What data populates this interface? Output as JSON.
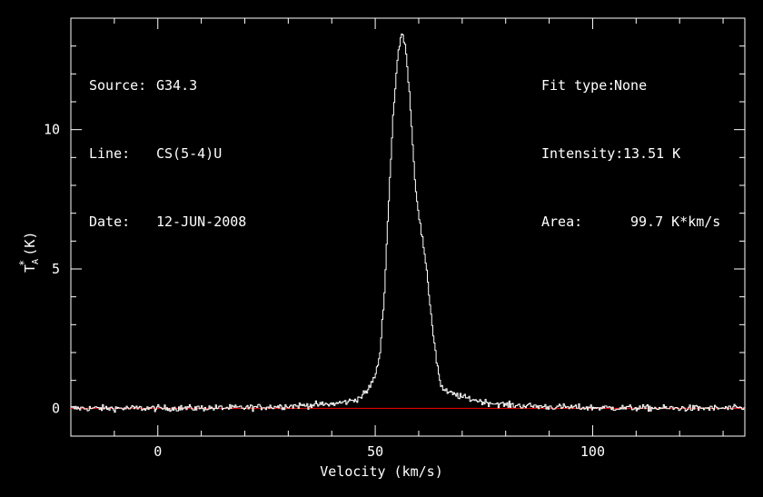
{
  "info_left": [
    {
      "key": "Source:",
      "value": "G34.3"
    },
    {
      "key": "Line:",
      "value": "CS(5-4)U"
    },
    {
      "key": "Date:",
      "value": "12-JUN-2008"
    }
  ],
  "info_right": [
    {
      "key": "Fit type:",
      "value": "None"
    },
    {
      "key": "Intensity:",
      "value": "13.51 K"
    },
    {
      "key": "Area:",
      "value": "99.7 K*km/s"
    }
  ],
  "colors": {
    "background": "#000000",
    "spectrum": "#ffffff",
    "baseline": "#ff0000",
    "axes": "#ffffff"
  },
  "chart_data": {
    "type": "line",
    "xlabel": "Velocity (km/s)",
    "ylabel": "T",
    "ylabel_sup": "*",
    "ylabel_sub": "A",
    "ylabel_unit": "(K)",
    "xlim": [
      -20,
      135
    ],
    "ylim": [
      -1,
      14
    ],
    "xticks": [
      0,
      50,
      100
    ],
    "yticks": [
      0,
      5,
      10
    ],
    "baseline_y": 0,
    "series": [
      {
        "values_x": [
          -20,
          0,
          20,
          30,
          40,
          44,
          46,
          48,
          50,
          51,
          52,
          53,
          54,
          55,
          56,
          57,
          58,
          59,
          60,
          61,
          62,
          63,
          64,
          65,
          66,
          68,
          70,
          75,
          80,
          90,
          100,
          120,
          135
        ],
        "values_y": [
          0.0,
          0.0,
          0.02,
          0.08,
          0.15,
          0.25,
          0.35,
          0.6,
          1.2,
          2.0,
          4.2,
          7.5,
          10.5,
          12.5,
          13.51,
          12.8,
          10.8,
          8.2,
          6.8,
          5.8,
          4.5,
          3.0,
          1.7,
          0.8,
          0.6,
          0.5,
          0.4,
          0.22,
          0.12,
          0.05,
          0.02,
          0.0,
          0.0
        ],
        "noise_rms": 0.08
      }
    ]
  }
}
